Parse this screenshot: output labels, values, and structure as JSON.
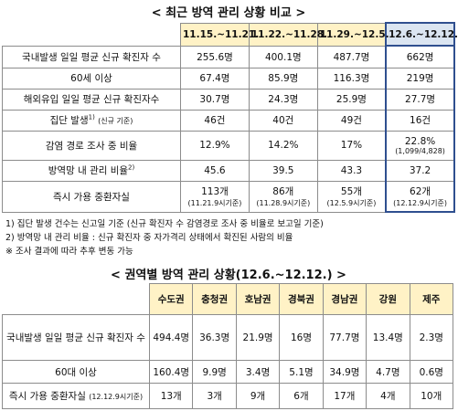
{
  "table1": {
    "title": "< 최근 방역 관리 상황 비교 >",
    "header": [
      "11.15.~11.21.",
      "11.22.~11.28.",
      "11.29.~12.5.",
      "12.6.~12.12."
    ],
    "rows": [
      {
        "label": "국내발생 일일 평균 신규 확진자 수",
        "cells": [
          "255.6명",
          "400.1명",
          "487.7명",
          "662명"
        ]
      },
      {
        "label": "60세 이상",
        "cells": [
          "67.4명",
          "85.9명",
          "116.3명",
          "219명"
        ]
      },
      {
        "label": "해외유입 일일 평균 신규 확진자수",
        "cells": [
          "30.7명",
          "24.3명",
          "25.9명",
          "27.7명"
        ]
      },
      {
        "label": "집단 발생",
        "sup": "1)",
        "note": "(신규 기준)",
        "cells": [
          "46건",
          "40건",
          "49건",
          "16건"
        ]
      },
      {
        "label": "감염 경로 조사 중 비율",
        "cells": [
          "12.9%",
          "14.2%",
          "17%",
          {
            "main": "22.8%",
            "sub": "(1,099/4,828)"
          }
        ]
      },
      {
        "label": "방역망 내 관리 비율",
        "sup": "2)",
        "cells": [
          "45.6",
          "39.5",
          "43.3",
          "37.2"
        ]
      },
      {
        "label": "즉시 가용 중환자실",
        "cells": [
          {
            "main": "113개",
            "sub": "(11.21.9시기준)"
          },
          {
            "main": "86개",
            "sub": "(11.28.9시기준)"
          },
          {
            "main": "55개",
            "sub": "(12.5.9시기준)"
          },
          {
            "main": "62개",
            "sub": "(12.12.9시기준)"
          }
        ]
      }
    ]
  },
  "notes": [
    "1) 집단 발생 건수는 신고일 기준 (신규 확진자 수 감염경로 조사 중 비율로 보고일 기준)",
    "2) 방역망 내 관리 비율 : 신규 확진자 중 자가격리 상태에서 확진된 사람의 비율",
    "※ 조사 결과에 따라 추후 변동 가능"
  ],
  "table2": {
    "title": "< 권역별 방역 관리 상황(12.6.~12.12.) >",
    "header": [
      "수도권",
      "충청권",
      "호남권",
      "경북권",
      "경남권",
      "강원",
      "제주"
    ],
    "rows": [
      {
        "label": "국내발생 일일 평균 신규 확진자 수",
        "cells": [
          "494.4명",
          "36.3명",
          "21.9명",
          "16명",
          "77.7명",
          "13.4명",
          "2.3명"
        ]
      },
      {
        "label": "60대 이상",
        "cells": [
          "160.4명",
          "9.9명",
          "3.4명",
          "5.1명",
          "34.9명",
          "4.7명",
          "0.6명"
        ]
      },
      {
        "label": "즉시 가용 중환자실",
        "note": "(12.12.9시기준)",
        "cells": [
          "13개",
          "3개",
          "9개",
          "6개",
          "17개",
          "4개",
          "10개"
        ]
      }
    ]
  }
}
